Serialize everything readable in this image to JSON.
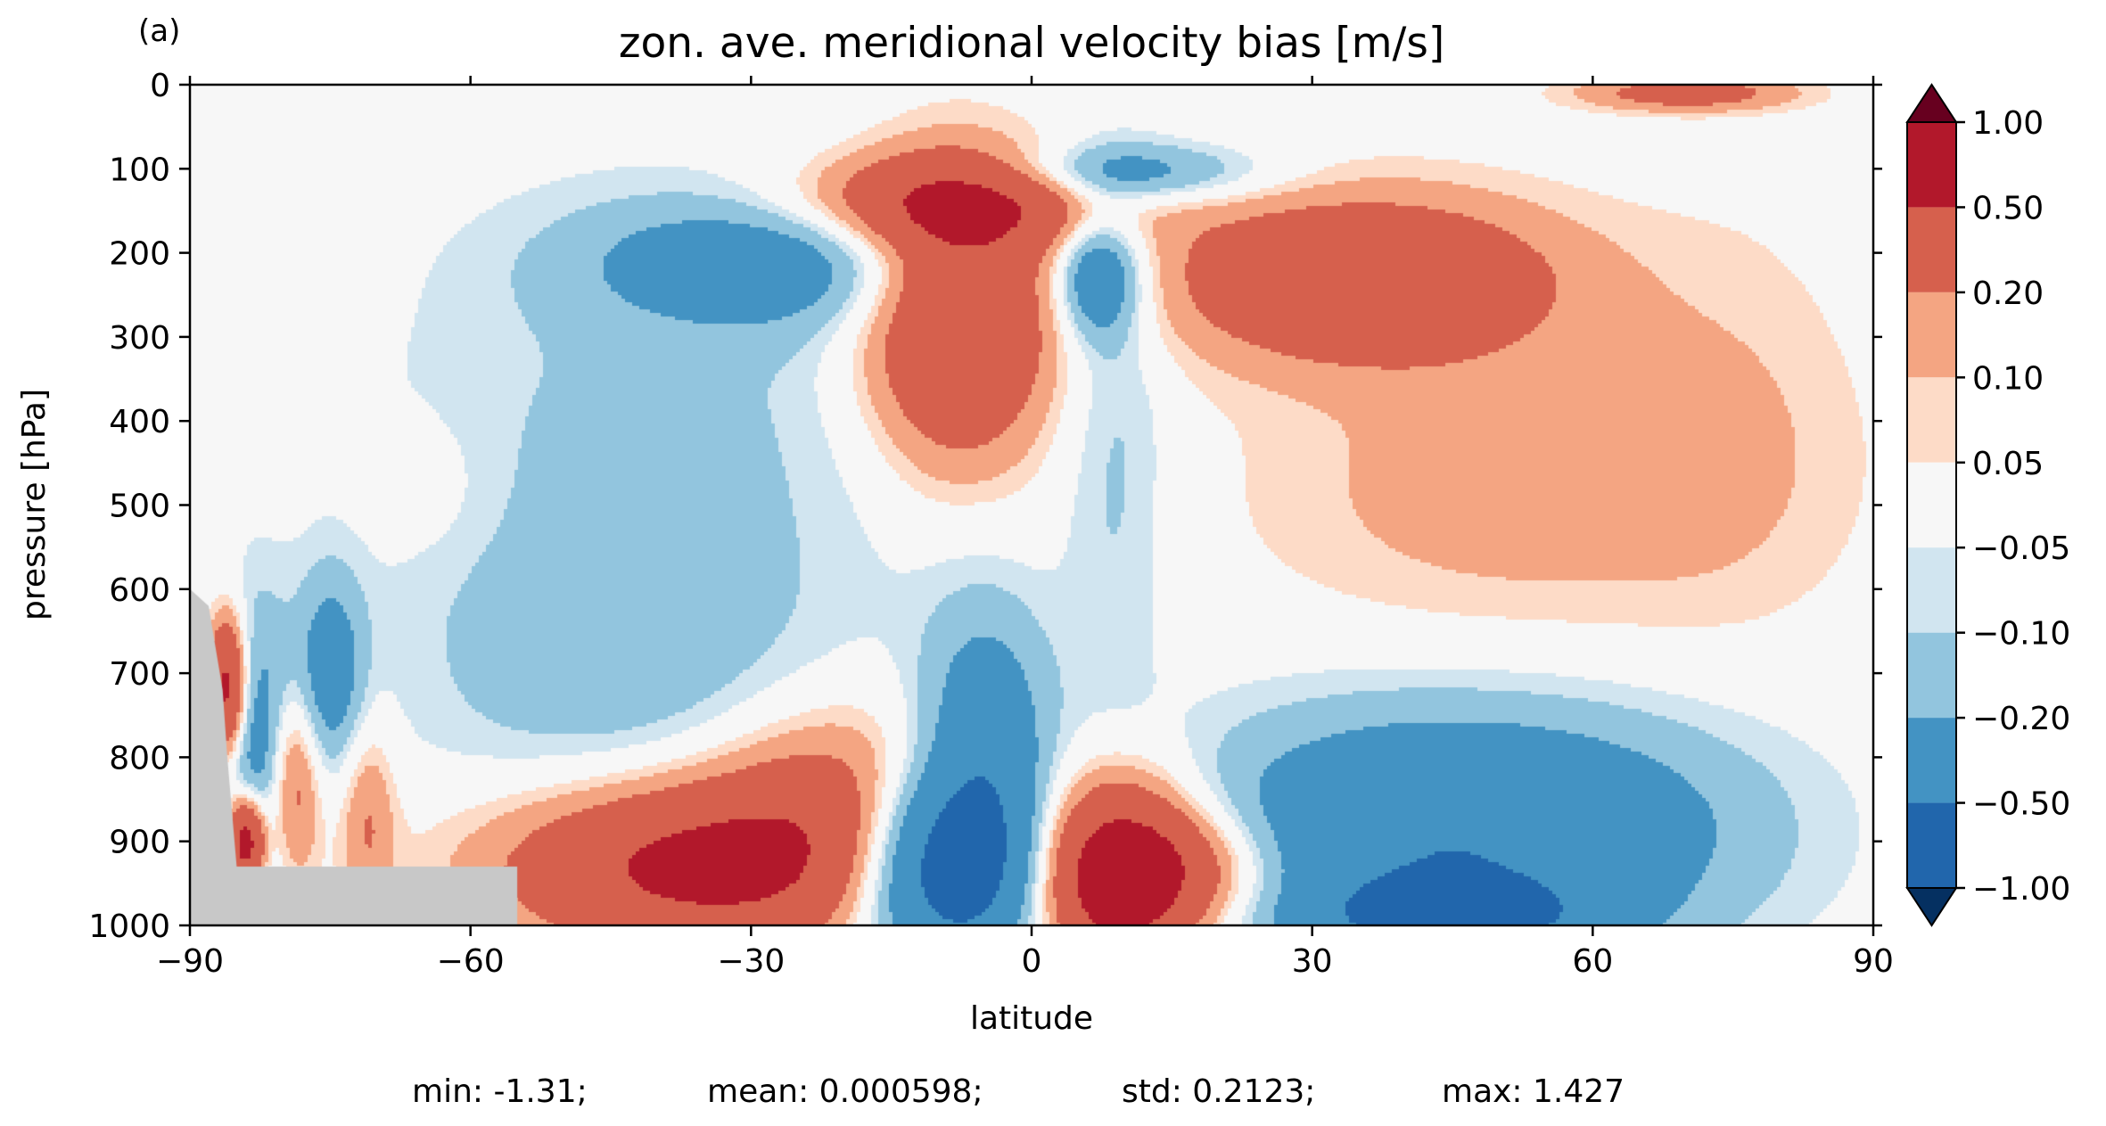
{
  "panel_label": "(a)",
  "chart_data": {
    "type": "heatmap",
    "subtype": "filled-contour",
    "title": "zon. ave. meridional velocity bias [m/s]",
    "xlabel": "latitude",
    "ylabel": "pressure [hPa]",
    "xlim": [
      -90,
      90
    ],
    "ylim": [
      1000,
      0
    ],
    "xticks": [
      -90,
      -60,
      -30,
      0,
      30,
      60,
      90
    ],
    "xtick_labels": [
      "−90",
      "−60",
      "−30",
      "0",
      "30",
      "60",
      "90"
    ],
    "yticks": [
      0,
      100,
      200,
      300,
      400,
      500,
      600,
      700,
      800,
      900,
      1000
    ],
    "ytick_labels": [
      "0",
      "100",
      "200",
      "300",
      "400",
      "500",
      "600",
      "700",
      "800",
      "900",
      "1000"
    ],
    "grid": false,
    "masked_color": "#c8c8c8",
    "colorbar": {
      "levels": [
        1.0,
        0.5,
        0.2,
        0.1,
        0.05,
        -0.05,
        -0.1,
        -0.2,
        -0.5,
        -1.0
      ],
      "tick_labels": [
        "1.00",
        "0.50",
        "0.20",
        "0.10",
        "0.05",
        "−0.05",
        "−0.10",
        "−0.20",
        "−0.50",
        "−1.00"
      ],
      "extend": "both",
      "colors": [
        "#67001f",
        "#b2182b",
        "#d6604d",
        "#f4a582",
        "#fddbc7",
        "#f7f7f7",
        "#d1e5f0",
        "#92c5de",
        "#4393c3",
        "#2166ac",
        "#053061"
      ]
    },
    "stats": {
      "min_label": "min: -1.31;",
      "mean_label": "mean: 0.000598;",
      "std_label": "std: 0.2123;",
      "max_label": "max: 1.427"
    },
    "field_features": [
      {
        "lat": -28,
        "p": 210,
        "value": -0.3,
        "sx": 14,
        "sy": 55
      },
      {
        "lat": -40,
        "p": 420,
        "value": -0.12,
        "sx": 22,
        "sy": 200
      },
      {
        "lat": -45,
        "p": 700,
        "value": -0.14,
        "sx": 15,
        "sy": 120
      },
      {
        "lat": -65,
        "p": 480,
        "value": 0.06,
        "sx": 5,
        "sy": 60
      },
      {
        "lat": -8,
        "p": 280,
        "value": 0.55,
        "sx": 7,
        "sy": 120
      },
      {
        "lat": -8,
        "p": 140,
        "value": 0.45,
        "sx": 12,
        "sy": 40
      },
      {
        "lat": 7,
        "p": 230,
        "value": -0.4,
        "sx": 3,
        "sy": 50
      },
      {
        "lat": 10,
        "p": 105,
        "value": -0.3,
        "sx": 10,
        "sy": 25
      },
      {
        "lat": 9,
        "p": 420,
        "value": -0.12,
        "sx": 4,
        "sy": 240
      },
      {
        "lat": 35,
        "p": 230,
        "value": 0.45,
        "sx": 15,
        "sy": 70
      },
      {
        "lat": 52,
        "p": 480,
        "value": 0.15,
        "sx": 20,
        "sy": 130
      },
      {
        "lat": 75,
        "p": 380,
        "value": 0.07,
        "sx": 10,
        "sy": 180
      },
      {
        "lat": 70,
        "p": 10,
        "value": 0.3,
        "sx": 8,
        "sy": 15
      },
      {
        "lat": -35,
        "p": 930,
        "value": 0.6,
        "sx": 15,
        "sy": 70
      },
      {
        "lat": -20,
        "p": 840,
        "value": 0.25,
        "sx": 10,
        "sy": 80
      },
      {
        "lat": -9,
        "p": 930,
        "value": -0.75,
        "sx": 7,
        "sy": 80
      },
      {
        "lat": -5,
        "p": 790,
        "value": -0.35,
        "sx": 5,
        "sy": 120
      },
      {
        "lat": 9,
        "p": 940,
        "value": 0.75,
        "sx": 6,
        "sy": 80
      },
      {
        "lat": 17,
        "p": 935,
        "value": 0.3,
        "sx": 7,
        "sy": 50
      },
      {
        "lat": 42,
        "p": 900,
        "value": -0.45,
        "sx": 18,
        "sy": 110
      },
      {
        "lat": 45,
        "p": 990,
        "value": -0.4,
        "sx": 10,
        "sy": 30
      },
      {
        "lat": 65,
        "p": 880,
        "value": -0.12,
        "sx": 15,
        "sy": 100
      },
      {
        "lat": -83,
        "p": 800,
        "value": -0.35,
        "sx": 3,
        "sy": 120
      },
      {
        "lat": -79,
        "p": 830,
        "value": 0.35,
        "sx": 2,
        "sy": 80
      },
      {
        "lat": -75,
        "p": 700,
        "value": -0.3,
        "sx": 2.5,
        "sy": 80
      },
      {
        "lat": -71,
        "p": 870,
        "value": 0.2,
        "sx": 2,
        "sy": 80
      },
      {
        "lat": -86,
        "p": 720,
        "value": 0.7,
        "sx": 1.5,
        "sy": 60
      },
      {
        "lat": -84,
        "p": 900,
        "value": 0.8,
        "sx": 1.5,
        "sy": 40
      }
    ]
  }
}
